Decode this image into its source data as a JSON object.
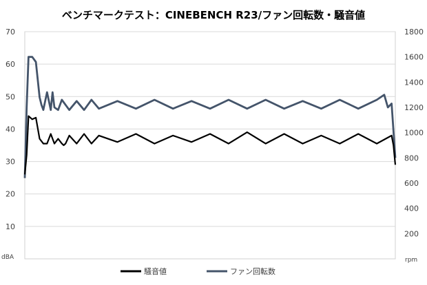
{
  "chart_data": {
    "type": "line",
    "title": "ベンチマークテスト：CINEBENCH R23/ファン回転数・騒音値",
    "y_left": {
      "unit_label": "dBA",
      "ticks": [
        "70",
        "60",
        "50",
        "40",
        "30",
        "20",
        "10"
      ],
      "range": [
        0,
        70
      ],
      "grid": true
    },
    "y_right": {
      "unit_label": "rpm",
      "ticks": [
        "1800",
        "1600",
        "1400",
        "1200",
        "1000",
        "800",
        "600",
        "400",
        "200"
      ],
      "range": [
        0,
        1800
      ]
    },
    "legend_position": "bottom",
    "series": [
      {
        "name": "騒音値",
        "axis": "left",
        "color": "#000000",
        "x": [
          0,
          0.5,
          1,
          2,
          3,
          4,
          5,
          6,
          7,
          8,
          9,
          10,
          10.5,
          11,
          12,
          14,
          16,
          18,
          20,
          25,
          30,
          35,
          40,
          45,
          50,
          55,
          60,
          65,
          70,
          75,
          80,
          85,
          90,
          95,
          99,
          99.5,
          100
        ],
        "values": [
          26,
          32,
          44,
          43,
          43.5,
          37,
          35.5,
          35.5,
          38.5,
          35.5,
          37,
          35.5,
          35,
          35.5,
          38,
          35.5,
          38.5,
          35.5,
          38,
          36,
          38.5,
          35.5,
          38,
          36,
          38.5,
          35.5,
          39,
          35.5,
          38.5,
          35.5,
          38,
          35.5,
          38.5,
          35.5,
          38,
          35,
          29
        ]
      },
      {
        "name": "ファン回転数",
        "axis": "right",
        "color": "#44546a",
        "x": [
          0,
          0.5,
          1,
          1.5,
          2,
          3,
          4,
          4.5,
          5,
          6,
          7,
          7.5,
          8,
          9,
          10,
          12,
          14,
          16,
          18,
          20,
          25,
          30,
          35,
          40,
          45,
          50,
          55,
          60,
          65,
          70,
          75,
          80,
          85,
          90,
          95,
          97,
          98,
          99,
          100
        ],
        "values": [
          640,
          1200,
          1600,
          1600,
          1600,
          1560,
          1280,
          1220,
          1180,
          1320,
          1180,
          1320,
          1200,
          1180,
          1260,
          1180,
          1250,
          1180,
          1260,
          1190,
          1250,
          1190,
          1260,
          1190,
          1250,
          1190,
          1260,
          1190,
          1260,
          1190,
          1250,
          1190,
          1260,
          1190,
          1260,
          1300,
          1200,
          1230,
          800
        ]
      }
    ]
  }
}
